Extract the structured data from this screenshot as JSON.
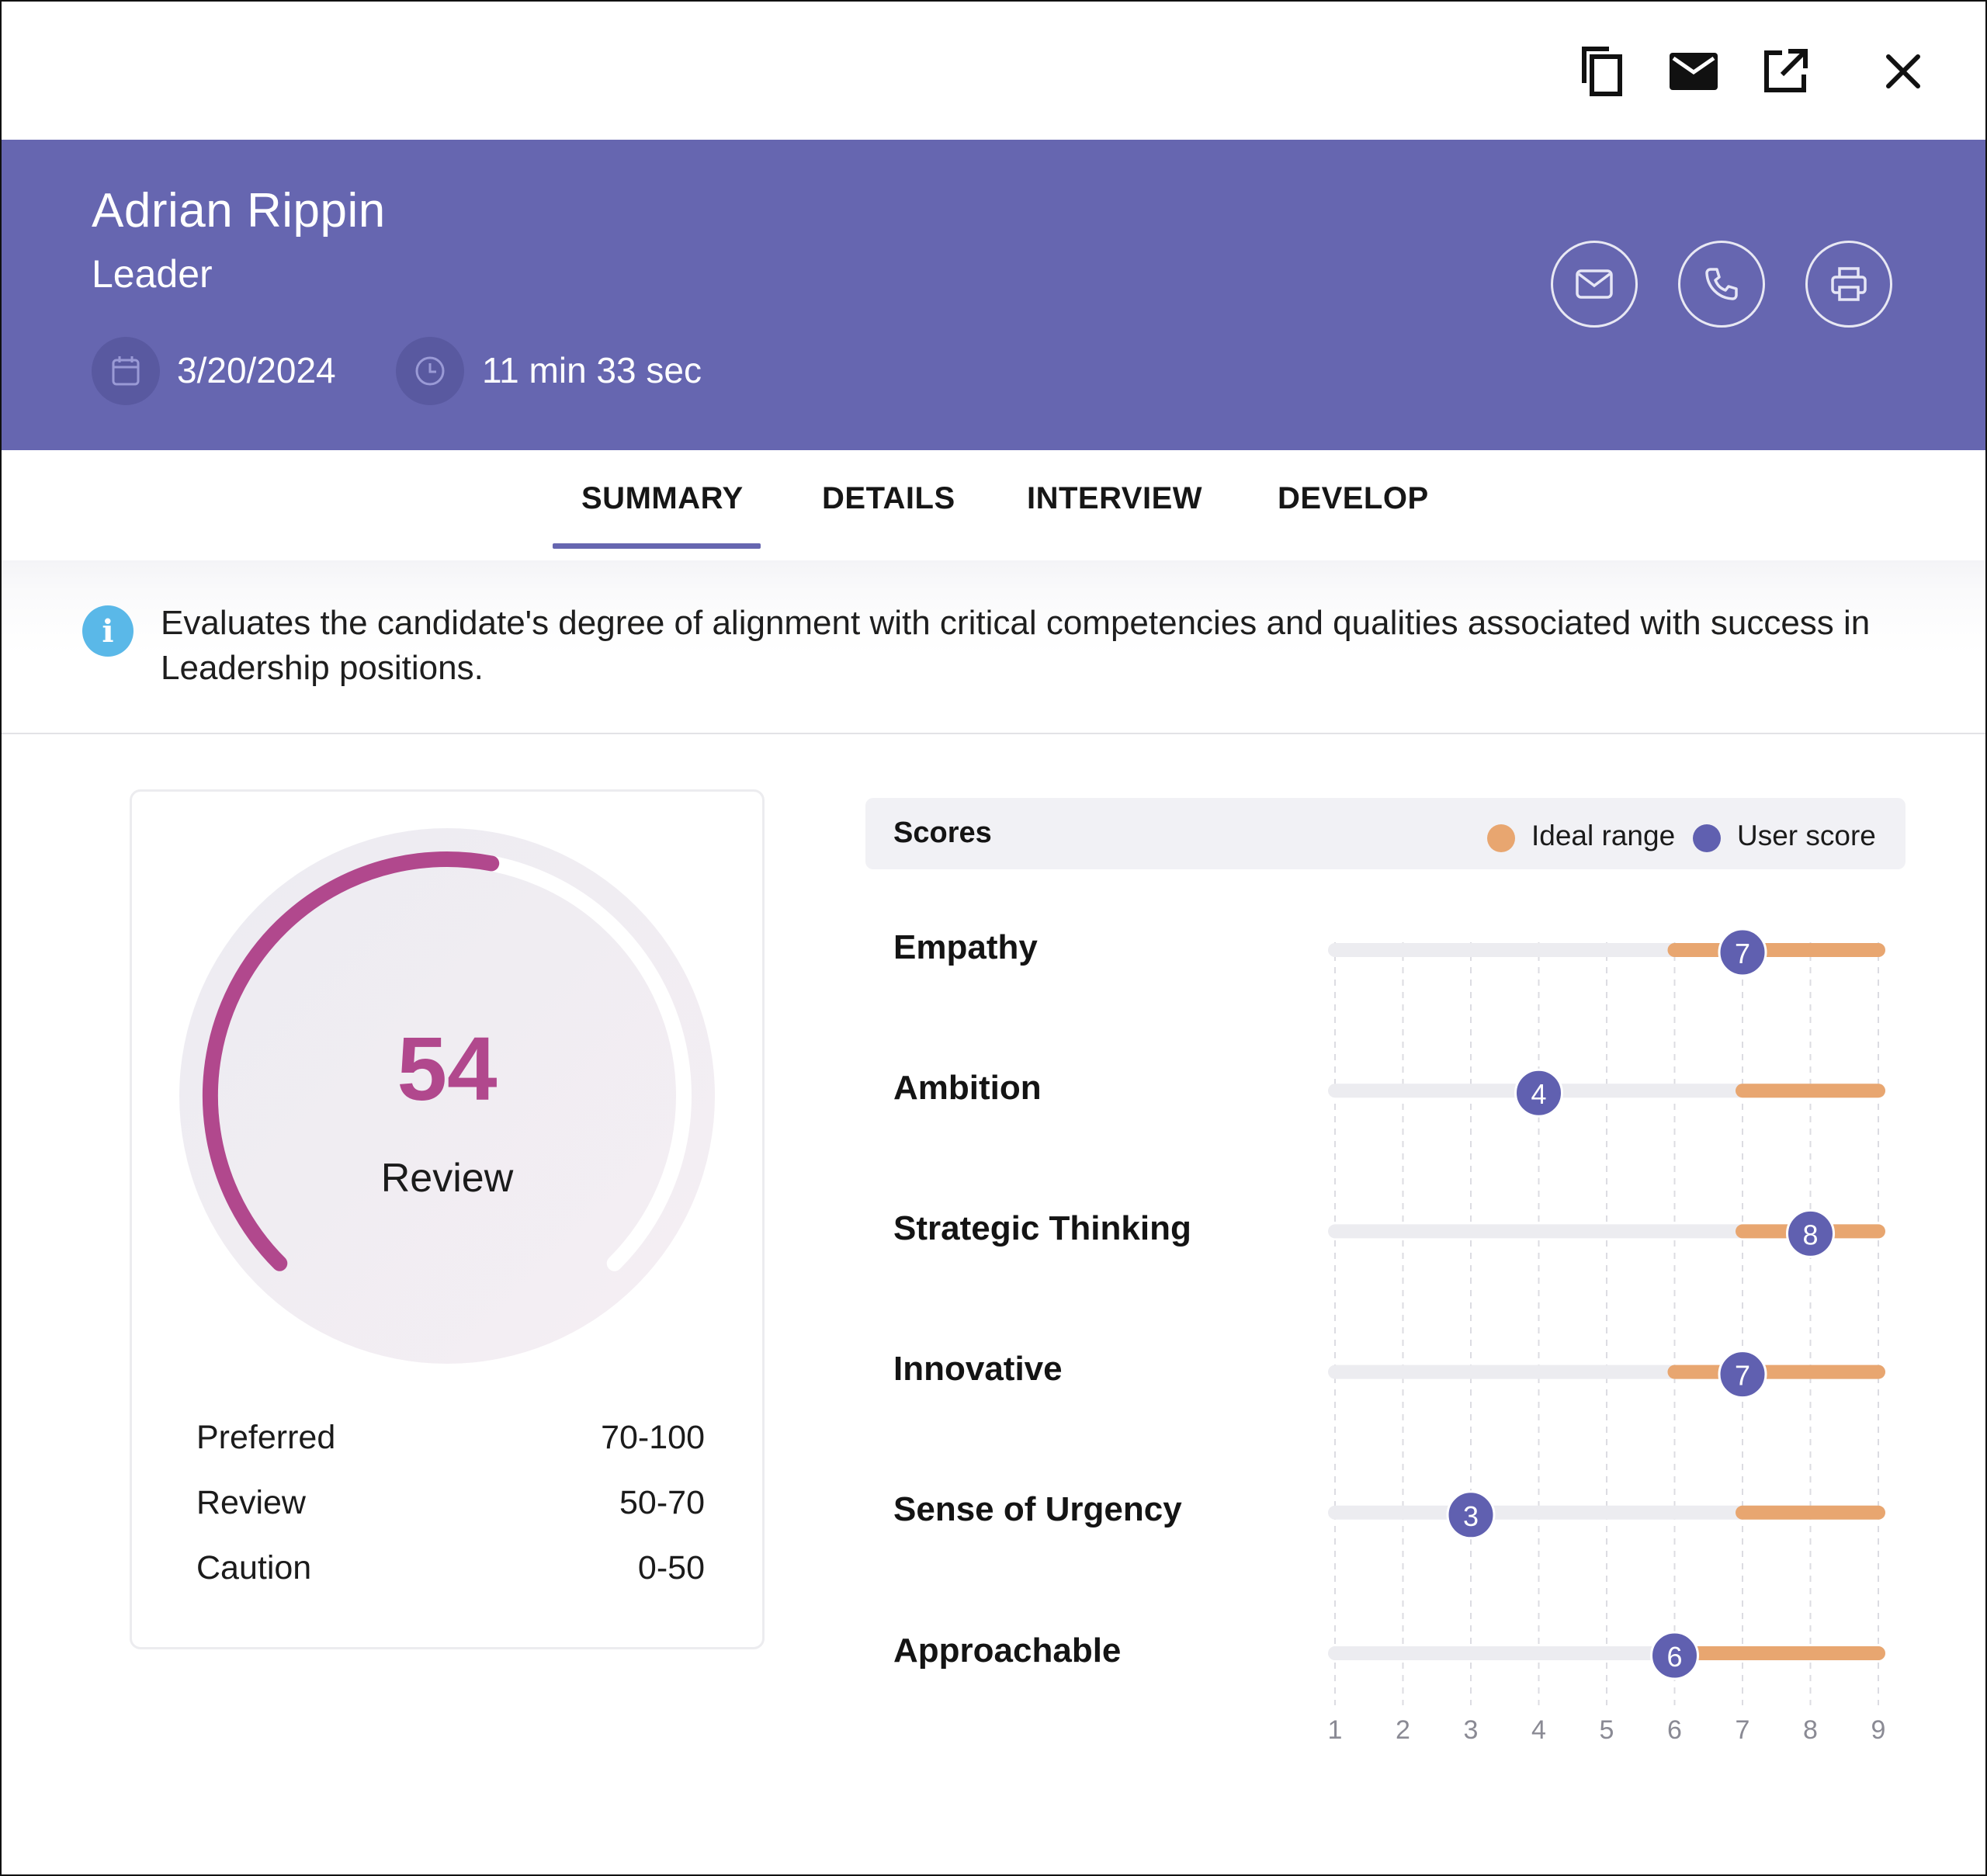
{
  "toolbar": {
    "copy_icon": "copy-icon",
    "mail_icon": "mail-icon",
    "open_external_icon": "open-external-icon",
    "close_icon": "close-icon"
  },
  "profile": {
    "name": "Adrian Rippin",
    "role": "Leader",
    "date": "3/20/2024",
    "duration": "11 min 33 sec",
    "background_color": "#6666b0",
    "actions": [
      "envelope-icon",
      "phone-icon",
      "printer-icon"
    ]
  },
  "tabs": [
    {
      "label": "SUMMARY",
      "active": true
    },
    {
      "label": "DETAILS",
      "active": false
    },
    {
      "label": "INTERVIEW",
      "active": false
    },
    {
      "label": "DEVELOP",
      "active": false
    }
  ],
  "info": {
    "text": "Evaluates the candidate's degree of alignment with critical competencies and qualities associated with success in Leadership positions."
  },
  "gauge": {
    "score": "54",
    "max": 100,
    "status": "Review",
    "color": "#b1488d",
    "ranges": [
      {
        "label": "Preferred",
        "value": "70-100"
      },
      {
        "label": "Review",
        "value": "50-70"
      },
      {
        "label": "Caution",
        "value": "0-50"
      }
    ]
  },
  "scores": {
    "title": "Scores",
    "legend": [
      {
        "label": "Ideal range",
        "color": "#e8a670"
      },
      {
        "label": "User score",
        "color": "#6060b0"
      }
    ]
  },
  "chart_data": {
    "type": "range-dot",
    "categories": [
      "Empathy",
      "Ambition",
      "Strategic Thinking",
      "Innovative",
      "Sense of Urgency",
      "Approachable"
    ],
    "x_ticks": [
      "1",
      "2",
      "3",
      "4",
      "5",
      "6",
      "7",
      "8",
      "9"
    ],
    "xlim": [
      1,
      9
    ],
    "series": [
      {
        "name": "Ideal range",
        "ranges": [
          [
            6,
            9
          ],
          [
            7,
            9
          ],
          [
            7,
            9
          ],
          [
            6,
            9
          ],
          [
            7,
            9
          ],
          [
            6,
            9
          ]
        ]
      },
      {
        "name": "User score",
        "values": [
          7,
          4,
          8,
          7,
          3,
          6
        ]
      }
    ]
  }
}
